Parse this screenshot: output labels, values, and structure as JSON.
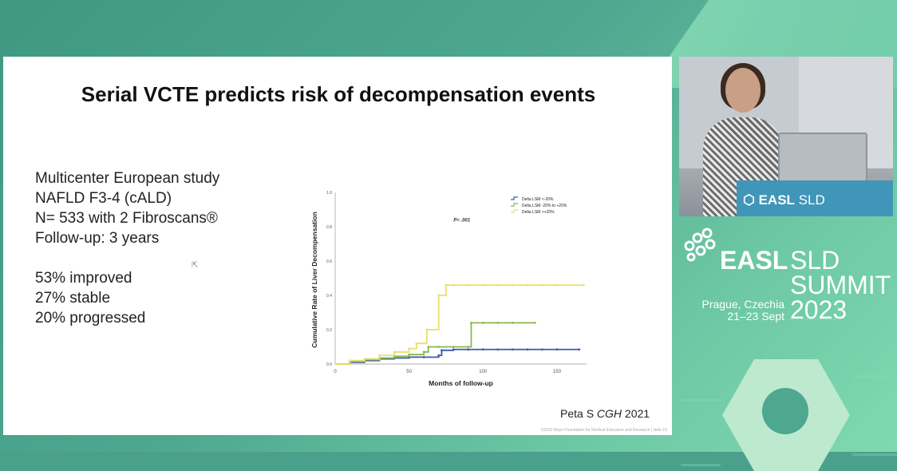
{
  "slide": {
    "title": "Serial VCTE predicts risk of decompensation events",
    "bullets_top": [
      "Multicenter European study",
      "NAFLD F3-4 (cALD)",
      "N= 533 with 2 Fibroscans®",
      "Follow-up: 3 years"
    ],
    "bullets_bottom": [
      "53% improved",
      "27% stable",
      "20% progressed"
    ],
    "citation_author": "Peta S ",
    "citation_journal": "CGH",
    "citation_year": " 2021",
    "footer_note": "©2023 Mayo Foundation for Medical Education and Research  |  slide-15"
  },
  "chart_data": {
    "type": "line",
    "xlabel": "Months of follow-up",
    "ylabel": "Cumulative Rate of Liver Decompensation",
    "annotation": "P= .001",
    "xlim": [
      0,
      170
    ],
    "ylim": [
      0,
      1.0
    ],
    "x_ticks": [
      "0",
      "50",
      "100",
      "150"
    ],
    "y_ticks": [
      "0.0",
      "0.2",
      "0.4",
      "0.6",
      "0.8",
      "1.0"
    ],
    "legend_position": "top-right",
    "series": [
      {
        "name": "Delta LSM <-20%",
        "color": "#3b5ba8",
        "x": [
          0,
          10,
          20,
          30,
          40,
          50,
          60,
          70,
          72,
          80,
          90,
          100,
          110,
          120,
          130,
          140,
          150,
          165
        ],
        "y": [
          0,
          0.01,
          0.02,
          0.03,
          0.035,
          0.04,
          0.04,
          0.05,
          0.08,
          0.085,
          0.085,
          0.085,
          0.085,
          0.085,
          0.085,
          0.085,
          0.085,
          0.085
        ]
      },
      {
        "name": "Delta LSM  -20% to +20%",
        "color": "#8cb84a",
        "x": [
          0,
          10,
          20,
          30,
          40,
          50,
          60,
          63,
          70,
          80,
          90,
          92,
          100,
          110,
          120,
          135
        ],
        "y": [
          0,
          0.015,
          0.025,
          0.035,
          0.045,
          0.055,
          0.07,
          0.1,
          0.1,
          0.1,
          0.1,
          0.24,
          0.24,
          0.24,
          0.24,
          0.24
        ]
      },
      {
        "name": "Delta LSM >+20%",
        "color": "#e8e06a",
        "x": [
          0,
          10,
          20,
          30,
          40,
          50,
          55,
          62,
          70,
          75,
          80,
          90,
          100,
          110,
          120,
          130,
          140,
          150,
          168
        ],
        "y": [
          0,
          0.02,
          0.03,
          0.05,
          0.07,
          0.09,
          0.12,
          0.2,
          0.4,
          0.46,
          0.46,
          0.46,
          0.46,
          0.46,
          0.46,
          0.46,
          0.46,
          0.46,
          0.46
        ]
      }
    ]
  },
  "branding": {
    "easl": "EASL",
    "sld": "SLD",
    "summit": "SUMMIT",
    "city": "Prague, Czechia",
    "dates": "21–23 Sept",
    "year": "2023",
    "podium_easl": "EASL",
    "podium_sld": " SLD"
  },
  "colors": {
    "background_teal": "#4aa08a",
    "accent_light": "#bde9cf"
  }
}
